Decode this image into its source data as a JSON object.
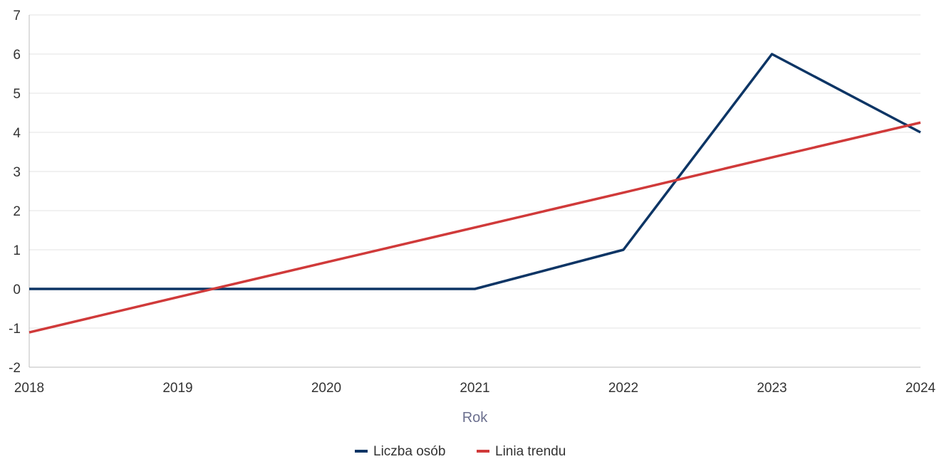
{
  "chart_data": {
    "type": "line",
    "xlabel": "Rok",
    "ylabel": "",
    "x": [
      2018,
      2019,
      2020,
      2021,
      2022,
      2023,
      2024
    ],
    "xlim": [
      2018,
      2024
    ],
    "ylim": [
      -2,
      7
    ],
    "yticks": [
      -2,
      -1,
      0,
      1,
      2,
      3,
      4,
      5,
      6,
      7
    ],
    "grid": true,
    "legend_position": "bottom",
    "series": [
      {
        "name": "Liczba osób",
        "color": "#0d3565",
        "values": [
          0,
          0,
          0,
          0,
          1,
          6,
          4
        ]
      },
      {
        "name": "Linia trendu",
        "color": "#d03a3a",
        "values": [
          -1.11,
          -0.21,
          0.68,
          1.57,
          2.46,
          3.36,
          4.25
        ]
      }
    ]
  }
}
